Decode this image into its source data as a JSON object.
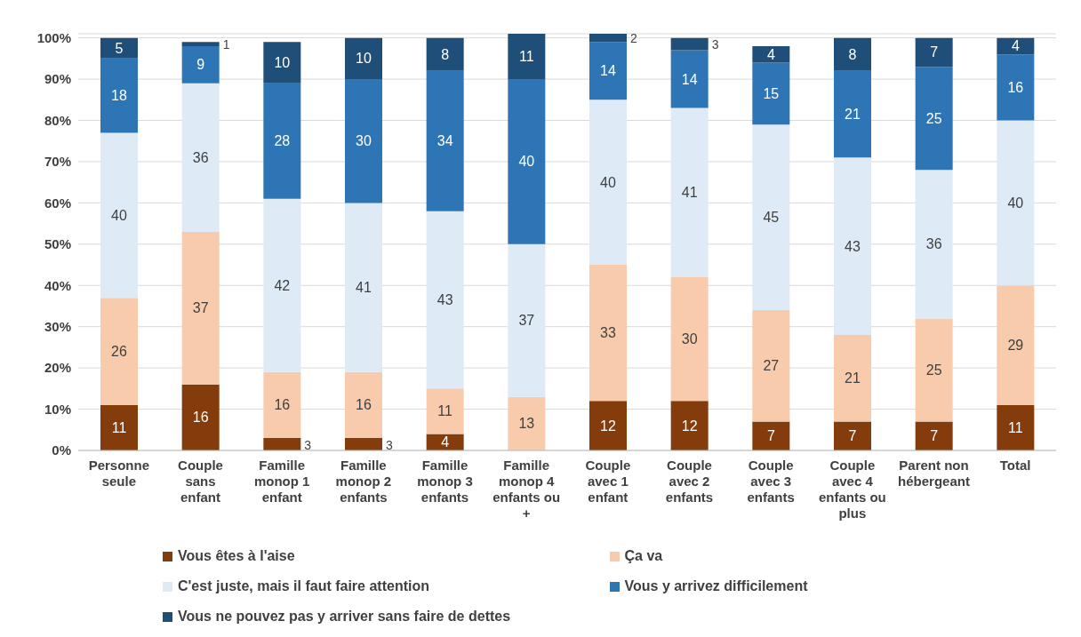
{
  "chart_data": {
    "type": "bar",
    "stacked": true,
    "categories": [
      "Personne seule",
      "Couple sans enfant",
      "Famille monop 1 enfant",
      "Famille monop 2 enfants",
      "Famille monop 3 enfants",
      "Famille monop 4 enfants ou +",
      "Couple avec 1 enfant",
      "Couple avec 2 enfants",
      "Couple avec 3 enfants",
      "Couple avec 4 enfants ou plus",
      "Parent non hébergeant",
      "Total"
    ],
    "series": [
      {
        "name": "Vous êtes à l'aise",
        "color": "#843c0c",
        "values": [
          11,
          16,
          3,
          3,
          4,
          null,
          12,
          12,
          7,
          7,
          7,
          11
        ]
      },
      {
        "name": "Ça va",
        "color": "#f8cbad",
        "values": [
          26,
          37,
          16,
          16,
          11,
          13,
          33,
          30,
          27,
          21,
          25,
          29
        ]
      },
      {
        "name": "C'est juste, mais il faut faire attention",
        "color": "#deebf7",
        "values": [
          40,
          36,
          42,
          41,
          43,
          37,
          40,
          41,
          45,
          43,
          36,
          40
        ]
      },
      {
        "name": "Vous y arrivez difficilement",
        "color": "#2e75b6",
        "values": [
          18,
          9,
          28,
          30,
          34,
          40,
          14,
          14,
          15,
          21,
          25,
          16
        ]
      },
      {
        "name": "Vous ne pouvez pas y arriver sans faire de dettes",
        "color": "#1f4e79",
        "values": [
          5,
          1,
          10,
          10,
          8,
          11,
          2,
          3,
          4,
          8,
          7,
          4
        ]
      }
    ],
    "ylim": [
      0,
      101
    ],
    "yticks": [
      {
        "value": 0,
        "label": "0%"
      },
      {
        "value": 10,
        "label": "10%"
      },
      {
        "value": 20,
        "label": "20%"
      },
      {
        "value": 30,
        "label": "30%"
      },
      {
        "value": 40,
        "label": "40%"
      },
      {
        "value": 50,
        "label": "50%"
      },
      {
        "value": 60,
        "label": "60%"
      },
      {
        "value": 70,
        "label": "70%"
      },
      {
        "value": 80,
        "label": "80%"
      },
      {
        "value": 90,
        "label": "90%"
      },
      {
        "value": 100,
        "label": "100%"
      }
    ],
    "grid": "y",
    "legend": "bottom",
    "data_labels": true
  }
}
